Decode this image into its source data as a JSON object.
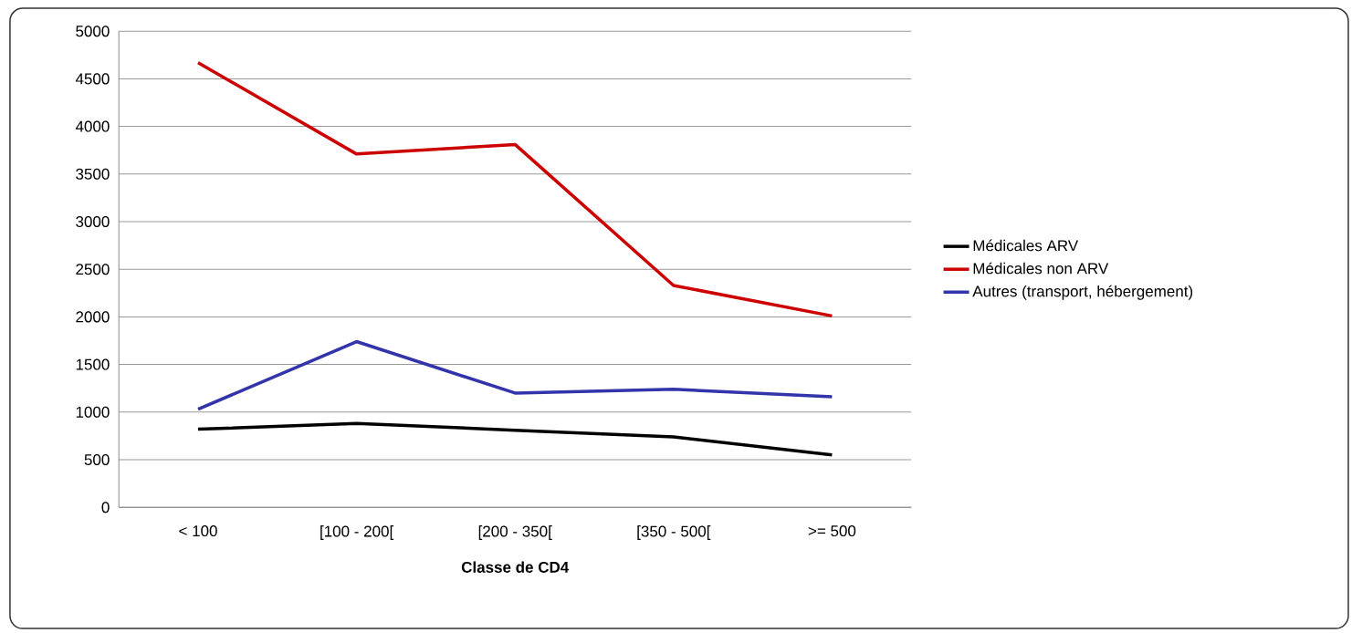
{
  "chart_data": {
    "type": "line",
    "xlabel": "Classe de CD4",
    "categories": [
      "< 100",
      "[100 - 200[",
      "[200 - 350[",
      "[350 - 500[",
      ">= 500"
    ],
    "series": [
      {
        "name": "Médicales ARV",
        "color": "#000000",
        "values": [
          820,
          880,
          810,
          740,
          550
        ]
      },
      {
        "name": "Médicales non ARV",
        "color": "#cc0000",
        "values": [
          4670,
          3710,
          3810,
          2330,
          2010
        ]
      },
      {
        "name": "Autres (transport, hébergement)",
        "color": "#3333aa",
        "values": [
          1030,
          1740,
          1200,
          1240,
          1160
        ]
      }
    ],
    "ylim": [
      0,
      5000
    ],
    "yticks": [
      0,
      500,
      1000,
      1500,
      2000,
      2500,
      3000,
      3500,
      4000,
      4500,
      5000
    ],
    "grid": "y",
    "legend": "right",
    "marker": "none",
    "line_style": "solid"
  }
}
